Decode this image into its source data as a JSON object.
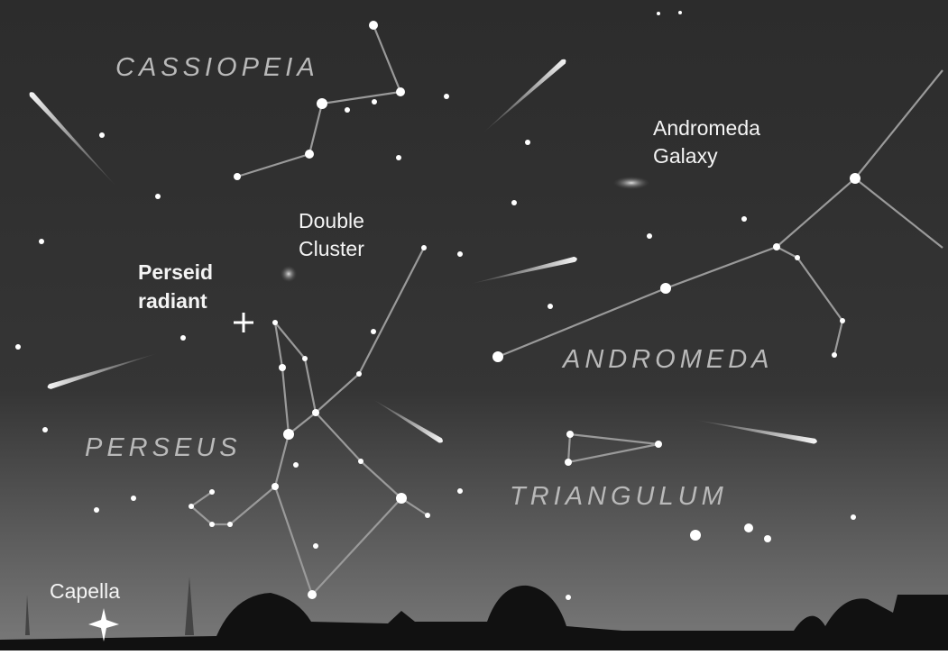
{
  "constellations": [
    "CASSIOPEIA",
    "ANDROMEDA",
    "PERSEUS",
    "TRIANGULUM"
  ],
  "objects": [
    {
      "lines": [
        "Andromeda",
        "Galaxy"
      ]
    },
    {
      "lines": [
        "Double",
        "Cluster"
      ]
    },
    {
      "lines": [
        "Perseid",
        "radiant"
      ]
    },
    {
      "lines": [
        "Capella"
      ]
    }
  ]
}
